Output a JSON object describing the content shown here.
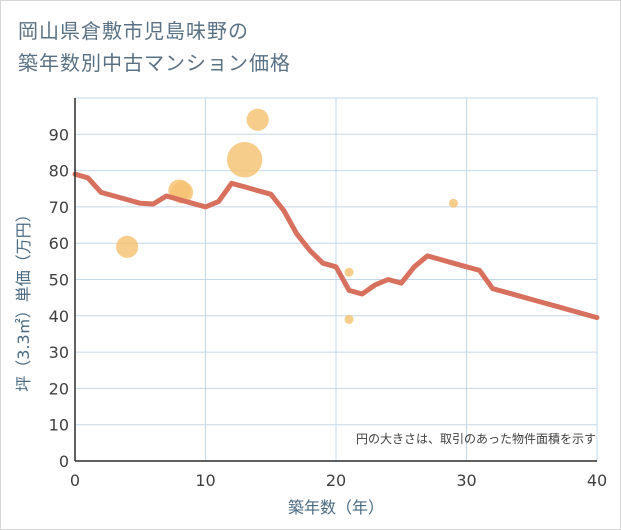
{
  "title_lines": [
    "岡山県倉敷市児島味野の",
    "築年数別中古マンション価格"
  ],
  "chart_data": {
    "type": "scatter",
    "title": "岡山県倉敷市児島味野の築年数別中古マンション価格",
    "xlabel": "築年数（年）",
    "ylabel": "坪（3.3㎡）単価（万円）",
    "xlim": [
      0,
      40
    ],
    "ylim": [
      0,
      100
    ],
    "xticks": [
      0,
      10,
      20,
      30,
      40
    ],
    "yticks": [
      0,
      10,
      20,
      30,
      40,
      50,
      60,
      70,
      80,
      90
    ],
    "grid": true,
    "note": "円の大きさは、取引のあった物件面積を示す",
    "scatter": [
      {
        "x": 4,
        "y": 59,
        "size": 3
      },
      {
        "x": 8,
        "y": 74.5,
        "size": 3
      },
      {
        "x": 8.2,
        "y": 74,
        "size": 3
      },
      {
        "x": 13,
        "y": 83,
        "size": 5
      },
      {
        "x": 14,
        "y": 94,
        "size": 3
      },
      {
        "x": 21,
        "y": 52,
        "size": 1
      },
      {
        "x": 21,
        "y": 39,
        "size": 1
      },
      {
        "x": 29,
        "y": 71,
        "size": 1
      }
    ],
    "trend": {
      "x": [
        0,
        1,
        2,
        3,
        4,
        5,
        6,
        7,
        8,
        9,
        10,
        11,
        12,
        13,
        14,
        15,
        16,
        17,
        18,
        19,
        20,
        21,
        22,
        23,
        24,
        25,
        26,
        27,
        28,
        29,
        30,
        31,
        32,
        33,
        34,
        35,
        36,
        37,
        38,
        39,
        40
      ],
      "y": [
        79,
        78,
        74,
        73,
        72,
        71,
        70.8,
        73,
        72,
        71,
        70,
        71.5,
        76.5,
        75.5,
        74.5,
        73.5,
        69,
        62.5,
        58,
        54.5,
        53.5,
        47,
        46,
        48.5,
        50,
        49,
        53.5,
        56.5,
        55.5,
        54.5,
        53.5,
        52.5,
        47.5,
        46.5,
        45.5,
        44.5,
        43.5,
        42.5,
        41.5,
        40.5,
        39.5
      ]
    },
    "colors": {
      "bubble": "#f5c272",
      "trend": "#d8705e",
      "grid": "#c5d8e8",
      "axis": "#2b2b2b"
    }
  }
}
